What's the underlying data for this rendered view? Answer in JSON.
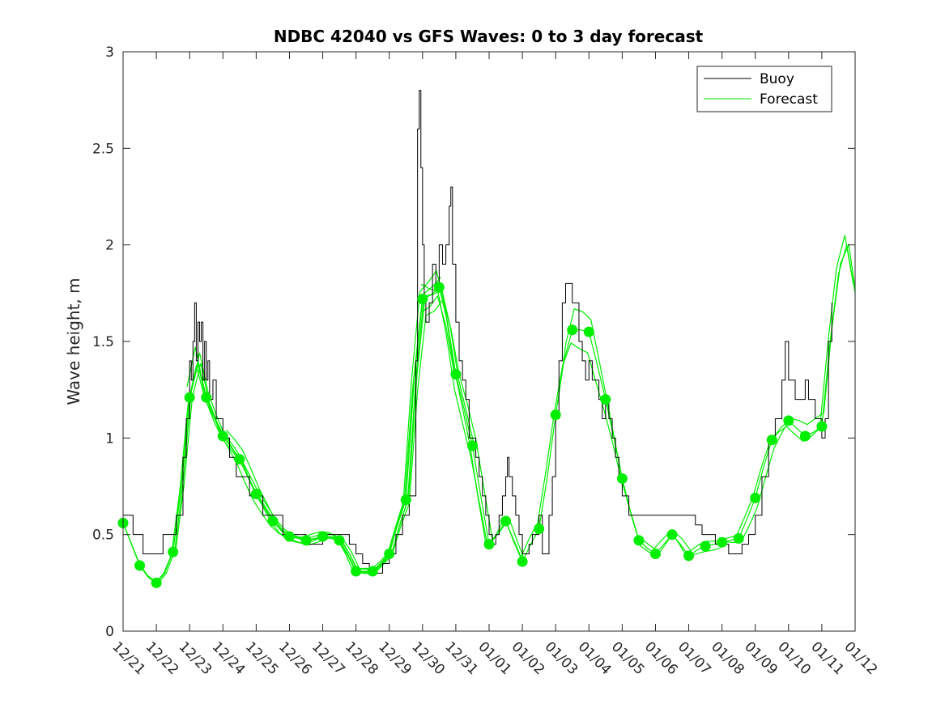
{
  "chart_data": {
    "type": "line",
    "title": "NDBC 42040 vs GFS Waves: 0 to 3 day forecast",
    "xlabel": "",
    "ylabel": "Wave height, m",
    "ylim": [
      0,
      3
    ],
    "yticks": [
      0,
      0.5,
      1,
      1.5,
      2,
      2.5,
      3
    ],
    "ytick_labels": [
      "0",
      "0.5",
      "1",
      "1.5",
      "2",
      "2.5",
      "3"
    ],
    "xlim_days": [
      0,
      22
    ],
    "xtick_labels": [
      "12/21",
      "12/22",
      "12/23",
      "12/24",
      "12/25",
      "12/26",
      "12/27",
      "12/28",
      "12/29",
      "12/30",
      "12/31",
      "01/01",
      "01/02",
      "01/03",
      "01/04",
      "01/05",
      "01/06",
      "01/07",
      "01/08",
      "01/09",
      "01/10",
      "01/11",
      "01/12"
    ],
    "grid": false,
    "legend_position": "top-right",
    "legend": [
      {
        "label": "Buoy",
        "color": "#000000"
      },
      {
        "label": "Forecast",
        "color": "#00ee00"
      }
    ],
    "colors": {
      "buoy": "#000000",
      "forecast": "#00ee00"
    },
    "buoy": [
      [
        0,
        0.6
      ],
      [
        0.2,
        0.6
      ],
      [
        0.3,
        0.5
      ],
      [
        0.5,
        0.5
      ],
      [
        0.6,
        0.4
      ],
      [
        0.8,
        0.4
      ],
      [
        1.0,
        0.4
      ],
      [
        1.2,
        0.5
      ],
      [
        1.4,
        0.5
      ],
      [
        1.6,
        0.6
      ],
      [
        1.8,
        0.9
      ],
      [
        1.9,
        1.1
      ],
      [
        2.0,
        1.4
      ],
      [
        2.05,
        1.3
      ],
      [
        2.1,
        1.5
      ],
      [
        2.15,
        1.7
      ],
      [
        2.2,
        1.4
      ],
      [
        2.25,
        1.6
      ],
      [
        2.3,
        1.5
      ],
      [
        2.35,
        1.6
      ],
      [
        2.4,
        1.3
      ],
      [
        2.45,
        1.5
      ],
      [
        2.5,
        1.3
      ],
      [
        2.55,
        1.4
      ],
      [
        2.6,
        1.2
      ],
      [
        2.7,
        1.3
      ],
      [
        2.8,
        1.1
      ],
      [
        2.9,
        1.1
      ],
      [
        3.0,
        1.0
      ],
      [
        3.1,
        1.0
      ],
      [
        3.2,
        0.9
      ],
      [
        3.3,
        0.9
      ],
      [
        3.4,
        0.8
      ],
      [
        3.6,
        0.8
      ],
      [
        3.8,
        0.7
      ],
      [
        4.0,
        0.7
      ],
      [
        4.2,
        0.6
      ],
      [
        4.5,
        0.6
      ],
      [
        4.8,
        0.5
      ],
      [
        5.0,
        0.5
      ],
      [
        5.2,
        0.5
      ],
      [
        5.5,
        0.45
      ],
      [
        5.8,
        0.45
      ],
      [
        6.0,
        0.5
      ],
      [
        6.3,
        0.5
      ],
      [
        6.5,
        0.5
      ],
      [
        6.8,
        0.45
      ],
      [
        7.0,
        0.4
      ],
      [
        7.2,
        0.35
      ],
      [
        7.4,
        0.3
      ],
      [
        7.6,
        0.3
      ],
      [
        7.8,
        0.35
      ],
      [
        8.0,
        0.4
      ],
      [
        8.2,
        0.5
      ],
      [
        8.4,
        0.6
      ],
      [
        8.6,
        0.7
      ],
      [
        8.8,
        1.4
      ],
      [
        8.85,
        2.6
      ],
      [
        8.9,
        2.8
      ],
      [
        8.95,
        2.4
      ],
      [
        9.0,
        2.0
      ],
      [
        9.05,
        1.7
      ],
      [
        9.1,
        1.6
      ],
      [
        9.2,
        1.7
      ],
      [
        9.3,
        1.9
      ],
      [
        9.4,
        1.8
      ],
      [
        9.5,
        2.0
      ],
      [
        9.6,
        1.9
      ],
      [
        9.7,
        2.0
      ],
      [
        9.8,
        2.2
      ],
      [
        9.85,
        2.3
      ],
      [
        9.9,
        1.9
      ],
      [
        10.0,
        1.6
      ],
      [
        10.1,
        1.4
      ],
      [
        10.2,
        1.3
      ],
      [
        10.3,
        1.2
      ],
      [
        10.4,
        1.0
      ],
      [
        10.5,
        1.0
      ],
      [
        10.6,
        0.9
      ],
      [
        10.7,
        0.8
      ],
      [
        10.8,
        0.7
      ],
      [
        10.9,
        0.6
      ],
      [
        11.0,
        0.5
      ],
      [
        11.1,
        0.45
      ],
      [
        11.2,
        0.5
      ],
      [
        11.3,
        0.6
      ],
      [
        11.4,
        0.7
      ],
      [
        11.5,
        0.8
      ],
      [
        11.55,
        0.9
      ],
      [
        11.6,
        0.8
      ],
      [
        11.7,
        0.7
      ],
      [
        11.8,
        0.6
      ],
      [
        11.9,
        0.5
      ],
      [
        12.0,
        0.4
      ],
      [
        12.1,
        0.4
      ],
      [
        12.2,
        0.45
      ],
      [
        12.3,
        0.5
      ],
      [
        12.4,
        0.5
      ],
      [
        12.5,
        0.6
      ],
      [
        12.6,
        0.4
      ],
      [
        12.7,
        0.4
      ],
      [
        12.8,
        0.6
      ],
      [
        12.9,
        0.8
      ],
      [
        13.0,
        1.1
      ],
      [
        13.1,
        1.4
      ],
      [
        13.2,
        1.7
      ],
      [
        13.3,
        1.8
      ],
      [
        13.4,
        1.8
      ],
      [
        13.5,
        1.7
      ],
      [
        13.6,
        1.7
      ],
      [
        13.7,
        1.5
      ],
      [
        13.8,
        1.4
      ],
      [
        13.9,
        1.3
      ],
      [
        14.0,
        1.4
      ],
      [
        14.1,
        1.3
      ],
      [
        14.2,
        1.3
      ],
      [
        14.3,
        1.2
      ],
      [
        14.4,
        1.1
      ],
      [
        14.5,
        1.2
      ],
      [
        14.6,
        1.1
      ],
      [
        14.7,
        1.0
      ],
      [
        14.8,
        0.9
      ],
      [
        14.9,
        0.8
      ],
      [
        15.0,
        0.7
      ],
      [
        15.2,
        0.6
      ],
      [
        15.4,
        0.6
      ],
      [
        15.6,
        0.6
      ],
      [
        15.8,
        0.6
      ],
      [
        16.0,
        0.6
      ],
      [
        16.2,
        0.6
      ],
      [
        16.4,
        0.6
      ],
      [
        16.6,
        0.6
      ],
      [
        16.8,
        0.6
      ],
      [
        17.0,
        0.6
      ],
      [
        17.2,
        0.55
      ],
      [
        17.4,
        0.5
      ],
      [
        17.6,
        0.5
      ],
      [
        17.8,
        0.45
      ],
      [
        18.0,
        0.45
      ],
      [
        18.2,
        0.4
      ],
      [
        18.4,
        0.4
      ],
      [
        18.6,
        0.45
      ],
      [
        18.8,
        0.5
      ],
      [
        19.0,
        0.6
      ],
      [
        19.2,
        0.8
      ],
      [
        19.4,
        1.0
      ],
      [
        19.6,
        1.1
      ],
      [
        19.8,
        1.3
      ],
      [
        19.9,
        1.5
      ],
      [
        20.0,
        1.3
      ],
      [
        20.2,
        1.2
      ],
      [
        20.4,
        1.2
      ],
      [
        20.5,
        1.3
      ],
      [
        20.6,
        1.2
      ],
      [
        20.8,
        1.1
      ],
      [
        21.0,
        1.0
      ],
      [
        21.1,
        1.1
      ],
      [
        21.2,
        1.5
      ],
      [
        21.3,
        1.7
      ]
    ],
    "forecast_base": [
      [
        0,
        0.56
      ],
      [
        0.25,
        0.45
      ],
      [
        0.5,
        0.34
      ],
      [
        0.75,
        0.28
      ],
      [
        1.0,
        0.25
      ],
      [
        1.25,
        0.3
      ],
      [
        1.5,
        0.41
      ],
      [
        1.75,
        0.75
      ],
      [
        2.0,
        1.21
      ],
      [
        2.25,
        1.4
      ],
      [
        2.5,
        1.21
      ],
      [
        2.75,
        1.1
      ],
      [
        3.0,
        1.01
      ],
      [
        3.25,
        0.95
      ],
      [
        3.5,
        0.89
      ],
      [
        3.75,
        0.8
      ],
      [
        4.0,
        0.71
      ],
      [
        4.25,
        0.64
      ],
      [
        4.5,
        0.57
      ],
      [
        4.75,
        0.52
      ],
      [
        5.0,
        0.49
      ],
      [
        5.25,
        0.48
      ],
      [
        5.5,
        0.47
      ],
      [
        5.75,
        0.48
      ],
      [
        6.0,
        0.49
      ],
      [
        6.25,
        0.49
      ],
      [
        6.5,
        0.47
      ],
      [
        6.75,
        0.4
      ],
      [
        7.0,
        0.31
      ],
      [
        7.25,
        0.31
      ],
      [
        7.5,
        0.31
      ],
      [
        7.75,
        0.35
      ],
      [
        8.0,
        0.4
      ],
      [
        8.25,
        0.55
      ],
      [
        8.5,
        0.68
      ],
      [
        8.75,
        1.3
      ],
      [
        9.0,
        1.72
      ],
      [
        9.25,
        1.74
      ],
      [
        9.5,
        1.78
      ],
      [
        9.75,
        1.6
      ],
      [
        10.0,
        1.33
      ],
      [
        10.25,
        1.15
      ],
      [
        10.5,
        0.96
      ],
      [
        10.75,
        0.7
      ],
      [
        11.0,
        0.45
      ],
      [
        11.25,
        0.5
      ],
      [
        11.5,
        0.57
      ],
      [
        11.75,
        0.46
      ],
      [
        12.0,
        0.36
      ],
      [
        12.25,
        0.45
      ],
      [
        12.5,
        0.53
      ],
      [
        12.75,
        0.8
      ],
      [
        13.0,
        1.12
      ],
      [
        13.25,
        1.4
      ],
      [
        13.5,
        1.56
      ],
      [
        13.75,
        1.56
      ],
      [
        14.0,
        1.55
      ],
      [
        14.25,
        1.38
      ],
      [
        14.5,
        1.2
      ],
      [
        14.75,
        1.0
      ],
      [
        15.0,
        0.79
      ],
      [
        15.25,
        0.62
      ],
      [
        15.5,
        0.47
      ],
      [
        15.75,
        0.43
      ],
      [
        16.0,
        0.4
      ],
      [
        16.25,
        0.45
      ],
      [
        16.5,
        0.5
      ],
      [
        16.75,
        0.45
      ],
      [
        17.0,
        0.39
      ],
      [
        17.25,
        0.42
      ],
      [
        17.5,
        0.44
      ],
      [
        17.75,
        0.45
      ],
      [
        18.0,
        0.46
      ],
      [
        18.25,
        0.47
      ],
      [
        18.5,
        0.48
      ],
      [
        18.75,
        0.58
      ],
      [
        19.0,
        0.69
      ],
      [
        19.25,
        0.85
      ],
      [
        19.5,
        0.99
      ],
      [
        19.75,
        1.05
      ],
      [
        20.0,
        1.09
      ],
      [
        20.25,
        1.05
      ],
      [
        20.5,
        1.01
      ],
      [
        20.75,
        1.03
      ],
      [
        21.0,
        1.06
      ],
      [
        21.25,
        1.5
      ],
      [
        21.5,
        1.85
      ],
      [
        21.75,
        2.0
      ],
      [
        22.0,
        1.75
      ]
    ],
    "forecast_markers": [
      [
        0,
        0.56
      ],
      [
        0.5,
        0.34
      ],
      [
        1.0,
        0.25
      ],
      [
        1.5,
        0.41
      ],
      [
        2.0,
        1.21
      ],
      [
        2.5,
        1.21
      ],
      [
        3.0,
        1.01
      ],
      [
        3.5,
        0.89
      ],
      [
        4.0,
        0.71
      ],
      [
        4.5,
        0.57
      ],
      [
        5.0,
        0.49
      ],
      [
        5.5,
        0.47
      ],
      [
        6.0,
        0.49
      ],
      [
        6.5,
        0.47
      ],
      [
        7.0,
        0.31
      ],
      [
        7.5,
        0.31
      ],
      [
        8.0,
        0.4
      ],
      [
        8.5,
        0.68
      ],
      [
        9.0,
        1.72
      ],
      [
        9.5,
        1.78
      ],
      [
        10.0,
        1.33
      ],
      [
        10.5,
        0.96
      ],
      [
        11.0,
        0.45
      ],
      [
        11.5,
        0.57
      ],
      [
        12.0,
        0.36
      ],
      [
        12.5,
        0.53
      ],
      [
        13.0,
        1.12
      ],
      [
        13.5,
        1.56
      ],
      [
        14.0,
        1.55
      ],
      [
        14.5,
        1.2
      ],
      [
        15.0,
        0.79
      ],
      [
        15.5,
        0.47
      ],
      [
        16.0,
        0.4
      ],
      [
        16.5,
        0.5
      ],
      [
        17.0,
        0.39
      ],
      [
        17.5,
        0.44
      ],
      [
        18.0,
        0.46
      ],
      [
        18.5,
        0.48
      ],
      [
        19.0,
        0.69
      ],
      [
        19.5,
        0.99
      ],
      [
        20.0,
        1.09
      ],
      [
        20.5,
        1.01
      ],
      [
        21.0,
        1.06
      ]
    ],
    "forecast_runs": [
      {
        "start": 0,
        "dy": 0.02,
        "dx": 0.0
      },
      {
        "start": 0.5,
        "dy": -0.03,
        "dx": 0.05
      },
      {
        "start": 1.0,
        "dy": 0.04,
        "dx": -0.05
      },
      {
        "start": 1.5,
        "dy": -0.02,
        "dx": 0.08
      },
      {
        "start": 2.0,
        "dy": 0.05,
        "dx": -0.08
      },
      {
        "start": 3.0,
        "dy": -0.05,
        "dx": 0.1
      },
      {
        "start": 9.0,
        "dy": 0.07,
        "dx": -0.04
      },
      {
        "start": 13.0,
        "dy": -0.07,
        "dx": 0.06
      },
      {
        "start": 18.0,
        "dy": 0.03,
        "dx": -0.06
      }
    ]
  }
}
